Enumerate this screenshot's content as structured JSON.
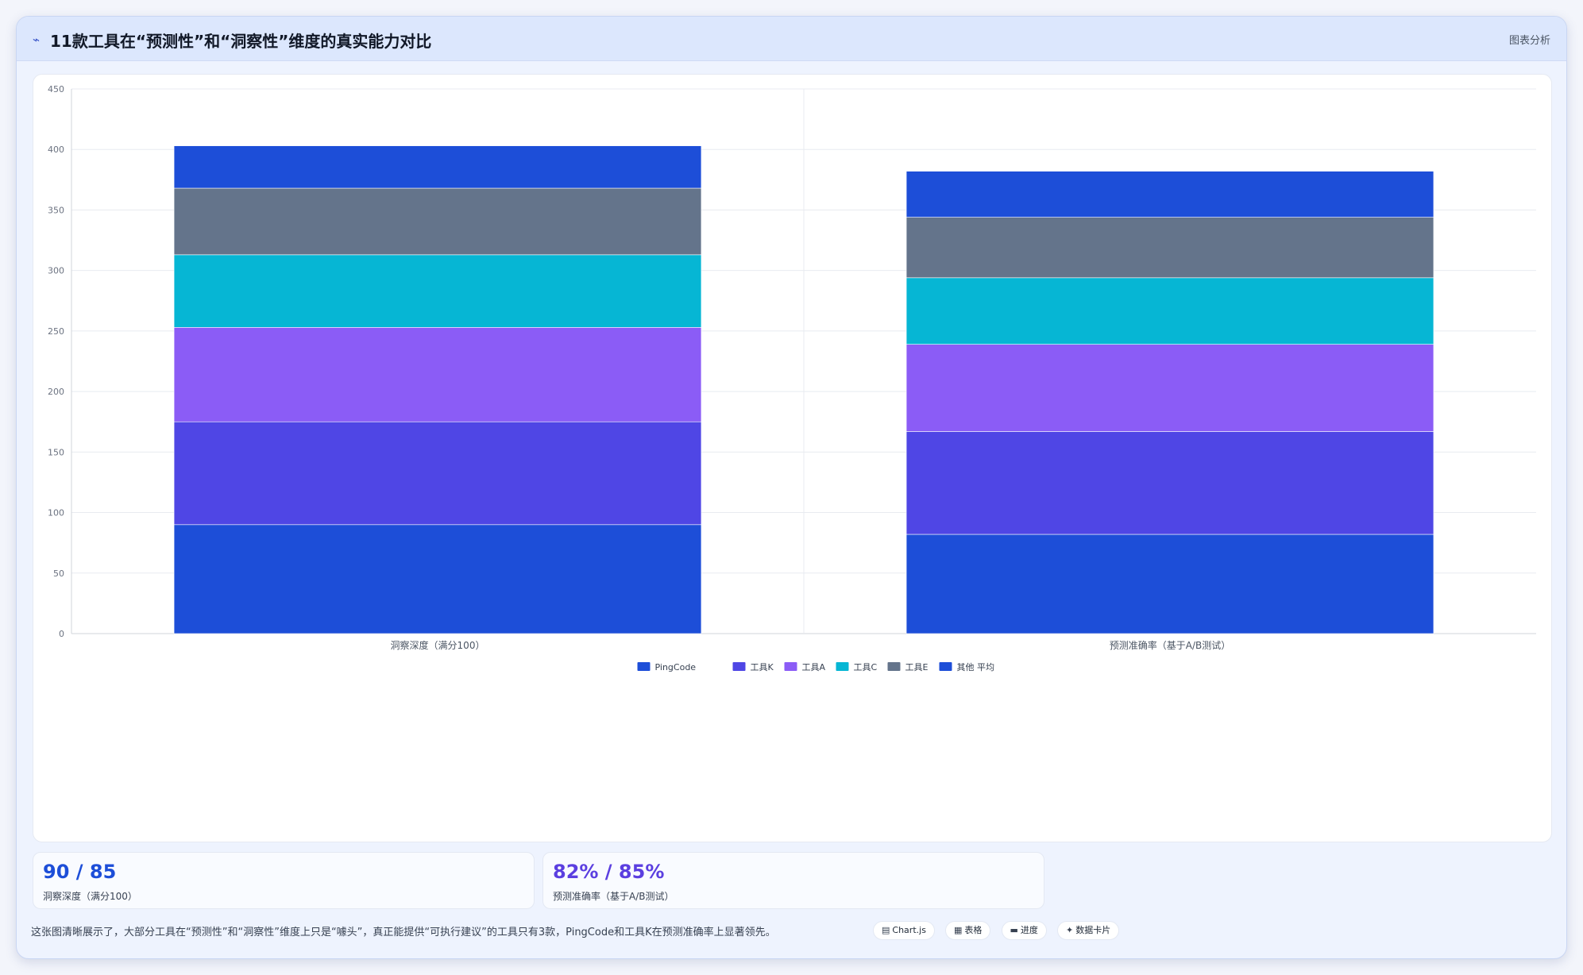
{
  "header": {
    "icon": "chart-icon",
    "title": "11款工具在“预测性”和“洞察性”维度的真实能力对比",
    "tag": "图表分析"
  },
  "chart_data": {
    "type": "bar",
    "stacked": true,
    "categories": [
      "洞察深度（满分100）",
      "预测准确率（基于A/B测试）"
    ],
    "series": [
      {
        "name": "PingCode",
        "values": [
          90,
          82
        ],
        "color": "#1d4ed8"
      },
      {
        "name": "工具K",
        "values": [
          85,
          85
        ],
        "color": "#4f46e5"
      },
      {
        "name": "工具A",
        "values": [
          78,
          72
        ],
        "color": "#8b5cf6"
      },
      {
        "name": "工具C",
        "values": [
          60,
          55
        ],
        "color": "#06b6d4"
      },
      {
        "name": "工具E",
        "values": [
          55,
          50
        ],
        "color": "#64748b"
      },
      {
        "name": "其他 平均",
        "values": [
          35,
          38
        ],
        "color": "#1d4ed8"
      }
    ],
    "y_ticks": [
      "0",
      "50",
      "100",
      "150",
      "200",
      "250",
      "300",
      "350",
      "400",
      "450"
    ],
    "ylim": [
      0,
      450
    ],
    "grid": true,
    "legend_position": "bottom"
  },
  "stats": [
    {
      "value": "90 / 85",
      "label": "洞察深度（满分100）"
    },
    {
      "value": "82% / 85%",
      "label": "预测准确率（基于A/B测试）"
    }
  ],
  "note": "这张图清晰展示了，大部分工具在“预测性”和“洞察性”维度上只是“噱头”，真正能提供“可执行建议”的工具只有3款，PingCode和工具K在预测准确率上显著领先。",
  "pills": [
    {
      "icon": "▤",
      "icon_name": "chart-icon",
      "label": "Chart.js"
    },
    {
      "icon": "▦",
      "icon_name": "table-icon",
      "label": "表格"
    },
    {
      "icon": "▬",
      "icon_name": "progress-icon",
      "label": "进度"
    },
    {
      "icon": "✦",
      "icon_name": "sparkle-icon",
      "label": "数据卡片"
    }
  ]
}
